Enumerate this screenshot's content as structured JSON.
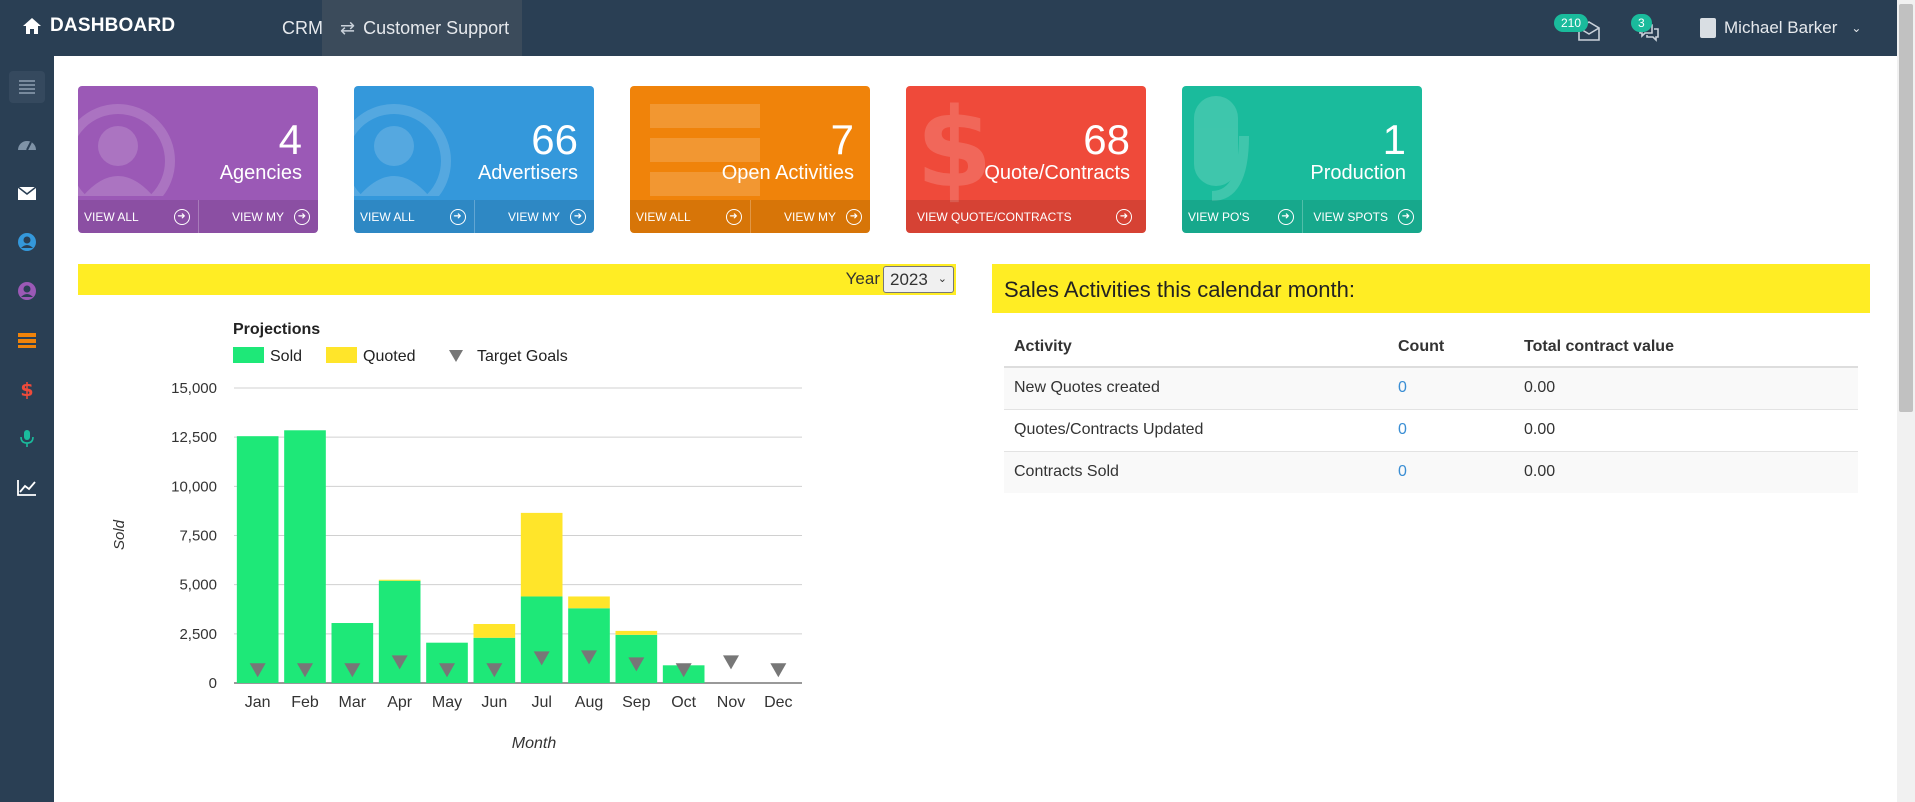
{
  "topbar": {
    "brand": "DASHBOARD",
    "nav_crm": "CRM",
    "nav_support": "Customer Support",
    "mail_count": "210",
    "chat_count": "3",
    "user_name": "Michael Barker"
  },
  "sidebar": {
    "items": [
      "menu-icon",
      "dashboard-icon",
      "mail-icon",
      "user-circle-icon",
      "user-circle-icon",
      "list-icon",
      "dollar-icon",
      "microphone-icon",
      "chart-line-icon"
    ]
  },
  "tiles": [
    {
      "count": "4",
      "label": "Agencies",
      "link_left": "VIEW ALL",
      "link_right": "VIEW MY",
      "color": "#9b59b6"
    },
    {
      "count": "66",
      "label": "Advertisers",
      "link_left": "VIEW ALL",
      "link_right": "VIEW MY",
      "color": "#3498db"
    },
    {
      "count": "7",
      "label": "Open Activities",
      "link_left": "VIEW ALL",
      "link_right": "VIEW MY",
      "color": "#f0830a"
    },
    {
      "count": "68",
      "label": "Quote/Contracts",
      "link_full": "VIEW QUOTE/CONTRACTS",
      "color": "#ef4a3a"
    },
    {
      "count": "1",
      "label": "Production",
      "link_left": "VIEW PO'S",
      "link_right": "VIEW SPOTS",
      "color": "#1abb9c"
    }
  ],
  "year_filter": {
    "label": "Year",
    "selected": "2023"
  },
  "chart_data": {
    "type": "bar",
    "stacked": true,
    "title": "Projections",
    "xlabel": "Month",
    "ylabel": "Sold",
    "categories": [
      "Jan",
      "Feb",
      "Mar",
      "Apr",
      "May",
      "Jun",
      "Jul",
      "Aug",
      "Sep",
      "Oct",
      "Nov",
      "Dec"
    ],
    "series": [
      {
        "name": "Sold",
        "color": "#1ee878",
        "values": [
          12550,
          12850,
          3050,
          5200,
          2050,
          2300,
          4400,
          3800,
          2450,
          900,
          0,
          0
        ]
      },
      {
        "name": "Quoted",
        "color": "#ffe52a",
        "values": [
          0,
          0,
          0,
          50,
          0,
          700,
          4250,
          600,
          200,
          0,
          0,
          0
        ]
      },
      {
        "name": "Target Goals",
        "color": "#777777",
        "marker": "triangle-down",
        "values": [
          650,
          650,
          650,
          1050,
          650,
          650,
          1250,
          1300,
          950,
          650,
          1050,
          650
        ]
      }
    ],
    "ylim": [
      0,
      15000
    ],
    "yticks": [
      "0",
      "2,500",
      "5,000",
      "7,500",
      "10,000",
      "12,500",
      "15,000"
    ],
    "grid": true,
    "legend": "top-left"
  },
  "sales": {
    "title": "Sales Activities this calendar month:",
    "columns": [
      "Activity",
      "Count",
      "Total contract value"
    ],
    "rows": [
      [
        "New Quotes created",
        "0",
        "0.00"
      ],
      [
        "Quotes/Contracts Updated",
        "0",
        "0.00"
      ],
      [
        "Contracts Sold",
        "0",
        "0.00"
      ]
    ]
  }
}
